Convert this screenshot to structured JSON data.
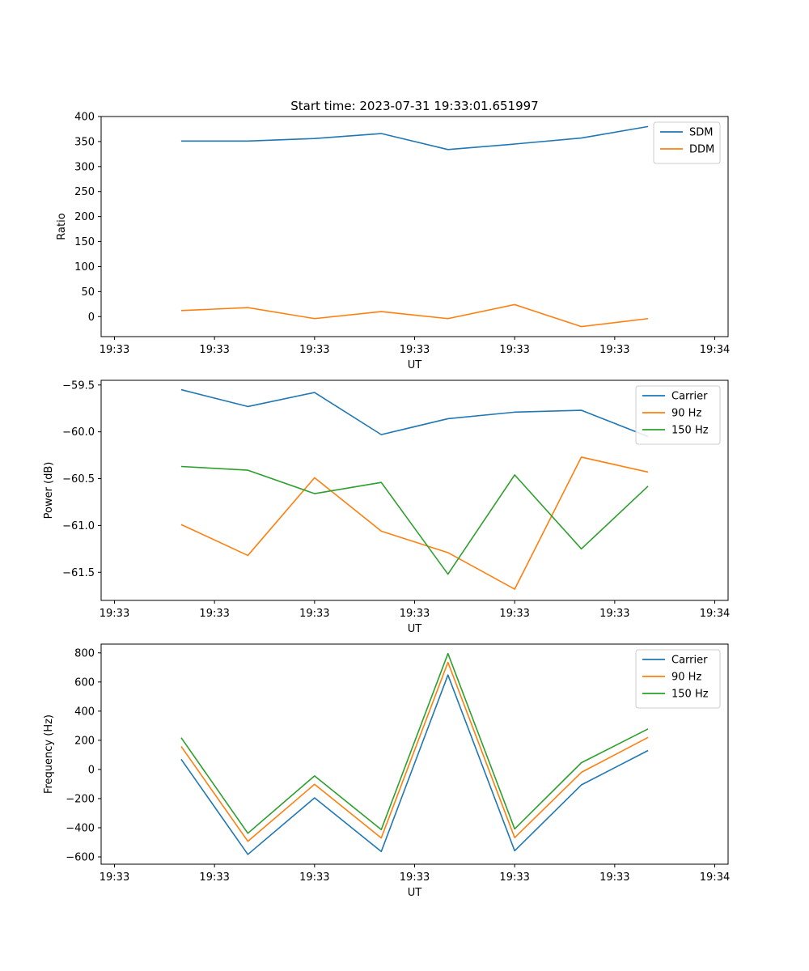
{
  "title": "Start time: 2023-07-31 19:33:01.651997",
  "colors": {
    "blue": "#1f77b4",
    "orange": "#ff7f0e",
    "green": "#2ca02c"
  },
  "chart_data": [
    {
      "type": "line",
      "xlabel": "UT",
      "ylabel": "Ratio",
      "xticks": [
        "19:33",
        "19:33",
        "19:33",
        "19:33",
        "19:33",
        "19:33",
        "19:34"
      ],
      "xlim": [
        -0.2,
        9.2
      ],
      "ylim": [
        -40,
        400
      ],
      "yticks": [
        0,
        50,
        100,
        150,
        200,
        250,
        300,
        350,
        400
      ],
      "ytick_labels": [
        "0",
        "50",
        "100",
        "150",
        "200",
        "250",
        "300",
        "350",
        "400"
      ],
      "x": [
        1,
        2,
        3,
        4,
        5,
        6,
        7,
        8
      ],
      "series": [
        {
          "name": "SDM",
          "color": "#1f77b4",
          "values": [
            351,
            351,
            356,
            366,
            334,
            345,
            357,
            380
          ]
        },
        {
          "name": "DDM",
          "color": "#ff7f0e",
          "values": [
            12,
            18,
            -4,
            10,
            -4,
            24,
            -20,
            -4
          ]
        }
      ],
      "legend": "top-right"
    },
    {
      "type": "line",
      "xlabel": "UT",
      "ylabel": "Power (dB)",
      "xticks": [
        "19:33",
        "19:33",
        "19:33",
        "19:33",
        "19:33",
        "19:33",
        "19:34"
      ],
      "xlim": [
        -0.2,
        9.2
      ],
      "ylim": [
        -61.8,
        -59.45
      ],
      "yticks": [
        -61.5,
        -61.0,
        -60.5,
        -60.0,
        -59.5
      ],
      "ytick_labels": [
        "−61.5",
        "−61.0",
        "−60.5",
        "−60.0",
        "−59.5"
      ],
      "x": [
        1,
        2,
        3,
        4,
        5,
        6,
        7,
        8
      ],
      "series": [
        {
          "name": "Carrier",
          "color": "#1f77b4",
          "values": [
            -59.55,
            -59.73,
            -59.58,
            -60.03,
            -59.86,
            -59.79,
            -59.77,
            -60.05
          ]
        },
        {
          "name": "90 Hz",
          "color": "#ff7f0e",
          "values": [
            -60.99,
            -61.32,
            -60.49,
            -61.06,
            -61.29,
            -61.68,
            -60.27,
            -60.43
          ]
        },
        {
          "name": "150 Hz",
          "color": "#2ca02c",
          "values": [
            -60.37,
            -60.41,
            -60.66,
            -60.54,
            -61.52,
            -60.46,
            -61.25,
            -60.58
          ]
        }
      ],
      "legend": "top-right"
    },
    {
      "type": "line",
      "xlabel": "UT",
      "ylabel": "Frequency (Hz)",
      "xticks": [
        "19:33",
        "19:33",
        "19:33",
        "19:33",
        "19:33",
        "19:33",
        "19:34"
      ],
      "xlim": [
        -0.2,
        9.2
      ],
      "ylim": [
        -650,
        860
      ],
      "yticks": [
        -600,
        -400,
        -200,
        0,
        200,
        400,
        600,
        800
      ],
      "ytick_labels": [
        "−600",
        "−400",
        "−200",
        "0",
        "200",
        "400",
        "600",
        "800"
      ],
      "x": [
        1,
        2,
        3,
        4,
        5,
        6,
        7,
        8
      ],
      "series": [
        {
          "name": "Carrier",
          "color": "#1f77b4",
          "values": [
            70,
            -583,
            -195,
            -563,
            648,
            -558,
            -106,
            130
          ]
        },
        {
          "name": "90 Hz",
          "color": "#ff7f0e",
          "values": [
            158,
            -493,
            -102,
            -470,
            735,
            -468,
            -20,
            220
          ]
        },
        {
          "name": "150 Hz",
          "color": "#2ca02c",
          "values": [
            218,
            -438,
            -44,
            -413,
            795,
            -408,
            46,
            278
          ]
        }
      ],
      "legend": "top-right"
    }
  ]
}
